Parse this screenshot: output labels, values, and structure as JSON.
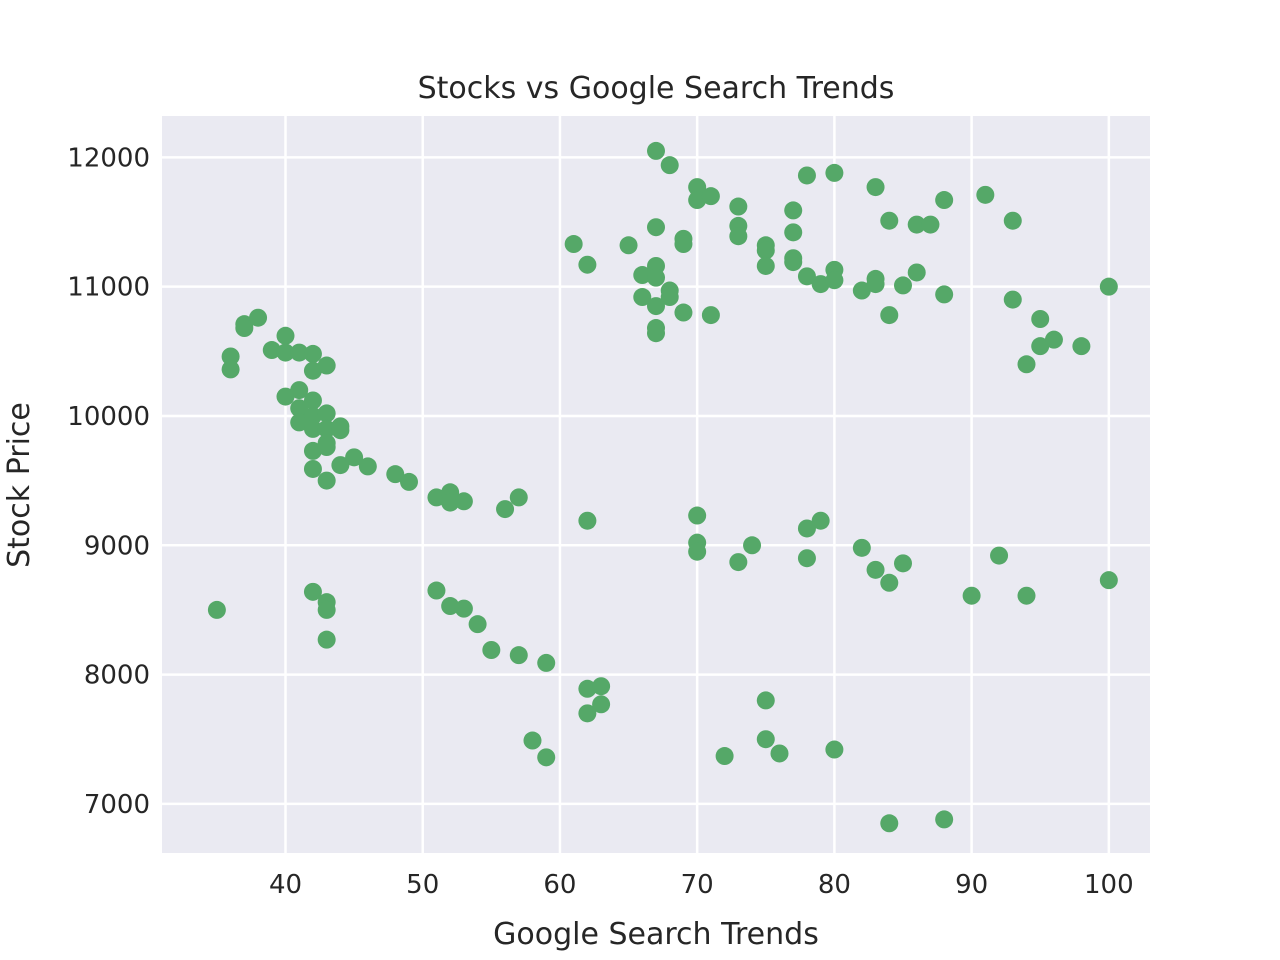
{
  "chart_data": {
    "type": "scatter",
    "title": "Stocks vs Google Search Trends",
    "xlabel": "Google Search Trends",
    "ylabel": "Stock Price",
    "xlim": [
      31,
      103
    ],
    "ylim": [
      6620,
      12320
    ],
    "xticks": [
      40,
      50,
      60,
      70,
      80,
      90,
      100
    ],
    "yticks": [
      7000,
      8000,
      9000,
      10000,
      11000,
      12000
    ],
    "grid": true,
    "marker_color": "#55a868",
    "background_color": "#eaeaf2",
    "points": [
      [
        35,
        8500
      ],
      [
        36,
        10460
      ],
      [
        36,
        10360
      ],
      [
        37,
        10710
      ],
      [
        37,
        10680
      ],
      [
        38,
        10760
      ],
      [
        39,
        10510
      ],
      [
        40,
        10620
      ],
      [
        40,
        10490
      ],
      [
        40,
        10150
      ],
      [
        41,
        10490
      ],
      [
        41,
        10200
      ],
      [
        41,
        10060
      ],
      [
        41,
        9950
      ],
      [
        42,
        10480
      ],
      [
        42,
        10350
      ],
      [
        42,
        10120
      ],
      [
        42,
        10000
      ],
      [
        42,
        9900
      ],
      [
        42,
        9730
      ],
      [
        42,
        9590
      ],
      [
        42,
        8640
      ],
      [
        43,
        10390
      ],
      [
        43,
        10020
      ],
      [
        43,
        9900
      ],
      [
        43,
        9790
      ],
      [
        43,
        9760
      ],
      [
        43,
        9500
      ],
      [
        43,
        8560
      ],
      [
        43,
        8500
      ],
      [
        43,
        8270
      ],
      [
        44,
        9920
      ],
      [
        44,
        9890
      ],
      [
        44,
        9620
      ],
      [
        45,
        9680
      ],
      [
        46,
        9610
      ],
      [
        48,
        9550
      ],
      [
        49,
        9490
      ],
      [
        51,
        9370
      ],
      [
        51,
        8650
      ],
      [
        52,
        9410
      ],
      [
        52,
        9330
      ],
      [
        52,
        8530
      ],
      [
        53,
        9340
      ],
      [
        53,
        8510
      ],
      [
        54,
        8390
      ],
      [
        55,
        8190
      ],
      [
        56,
        9280
      ],
      [
        57,
        9370
      ],
      [
        57,
        8150
      ],
      [
        58,
        7490
      ],
      [
        59,
        8090
      ],
      [
        59,
        7360
      ],
      [
        61,
        11330
      ],
      [
        62,
        11170
      ],
      [
        62,
        9190
      ],
      [
        62,
        7890
      ],
      [
        62,
        7700
      ],
      [
        63,
        7910
      ],
      [
        63,
        7770
      ],
      [
        65,
        11320
      ],
      [
        66,
        11090
      ],
      [
        66,
        10920
      ],
      [
        67,
        12050
      ],
      [
        67,
        11460
      ],
      [
        67,
        11160
      ],
      [
        67,
        11070
      ],
      [
        67,
        10850
      ],
      [
        67,
        10680
      ],
      [
        67,
        10640
      ],
      [
        68,
        11940
      ],
      [
        68,
        10970
      ],
      [
        68,
        10920
      ],
      [
        69,
        11370
      ],
      [
        69,
        11330
      ],
      [
        69,
        10800
      ],
      [
        70,
        11770
      ],
      [
        70,
        11670
      ],
      [
        70,
        9230
      ],
      [
        70,
        9020
      ],
      [
        70,
        8950
      ],
      [
        71,
        11700
      ],
      [
        71,
        10780
      ],
      [
        72,
        7370
      ],
      [
        73,
        11620
      ],
      [
        73,
        11470
      ],
      [
        73,
        11390
      ],
      [
        73,
        8870
      ],
      [
        74,
        9000
      ],
      [
        75,
        11320
      ],
      [
        75,
        11280
      ],
      [
        75,
        11160
      ],
      [
        75,
        7800
      ],
      [
        75,
        7500
      ],
      [
        76,
        7390
      ],
      [
        77,
        11590
      ],
      [
        77,
        11420
      ],
      [
        77,
        11220
      ],
      [
        77,
        11190
      ],
      [
        78,
        11860
      ],
      [
        78,
        11080
      ],
      [
        78,
        9130
      ],
      [
        78,
        8900
      ],
      [
        79,
        11020
      ],
      [
        79,
        9190
      ],
      [
        80,
        11880
      ],
      [
        80,
        11130
      ],
      [
        80,
        11050
      ],
      [
        80,
        7420
      ],
      [
        82,
        10970
      ],
      [
        82,
        8980
      ],
      [
        83,
        11770
      ],
      [
        83,
        11060
      ],
      [
        83,
        11020
      ],
      [
        83,
        8810
      ],
      [
        84,
        11510
      ],
      [
        84,
        10780
      ],
      [
        84,
        8710
      ],
      [
        84,
        6850
      ],
      [
        85,
        11010
      ],
      [
        85,
        8860
      ],
      [
        86,
        11480
      ],
      [
        86,
        11110
      ],
      [
        87,
        11480
      ],
      [
        88,
        11670
      ],
      [
        88,
        10940
      ],
      [
        88,
        6880
      ],
      [
        90,
        8610
      ],
      [
        91,
        11710
      ],
      [
        92,
        8920
      ],
      [
        93,
        11510
      ],
      [
        93,
        10900
      ],
      [
        94,
        10400
      ],
      [
        94,
        8610
      ],
      [
        95,
        10750
      ],
      [
        95,
        10540
      ],
      [
        96,
        10590
      ],
      [
        98,
        10540
      ],
      [
        100,
        11000
      ],
      [
        100,
        8730
      ]
    ]
  }
}
